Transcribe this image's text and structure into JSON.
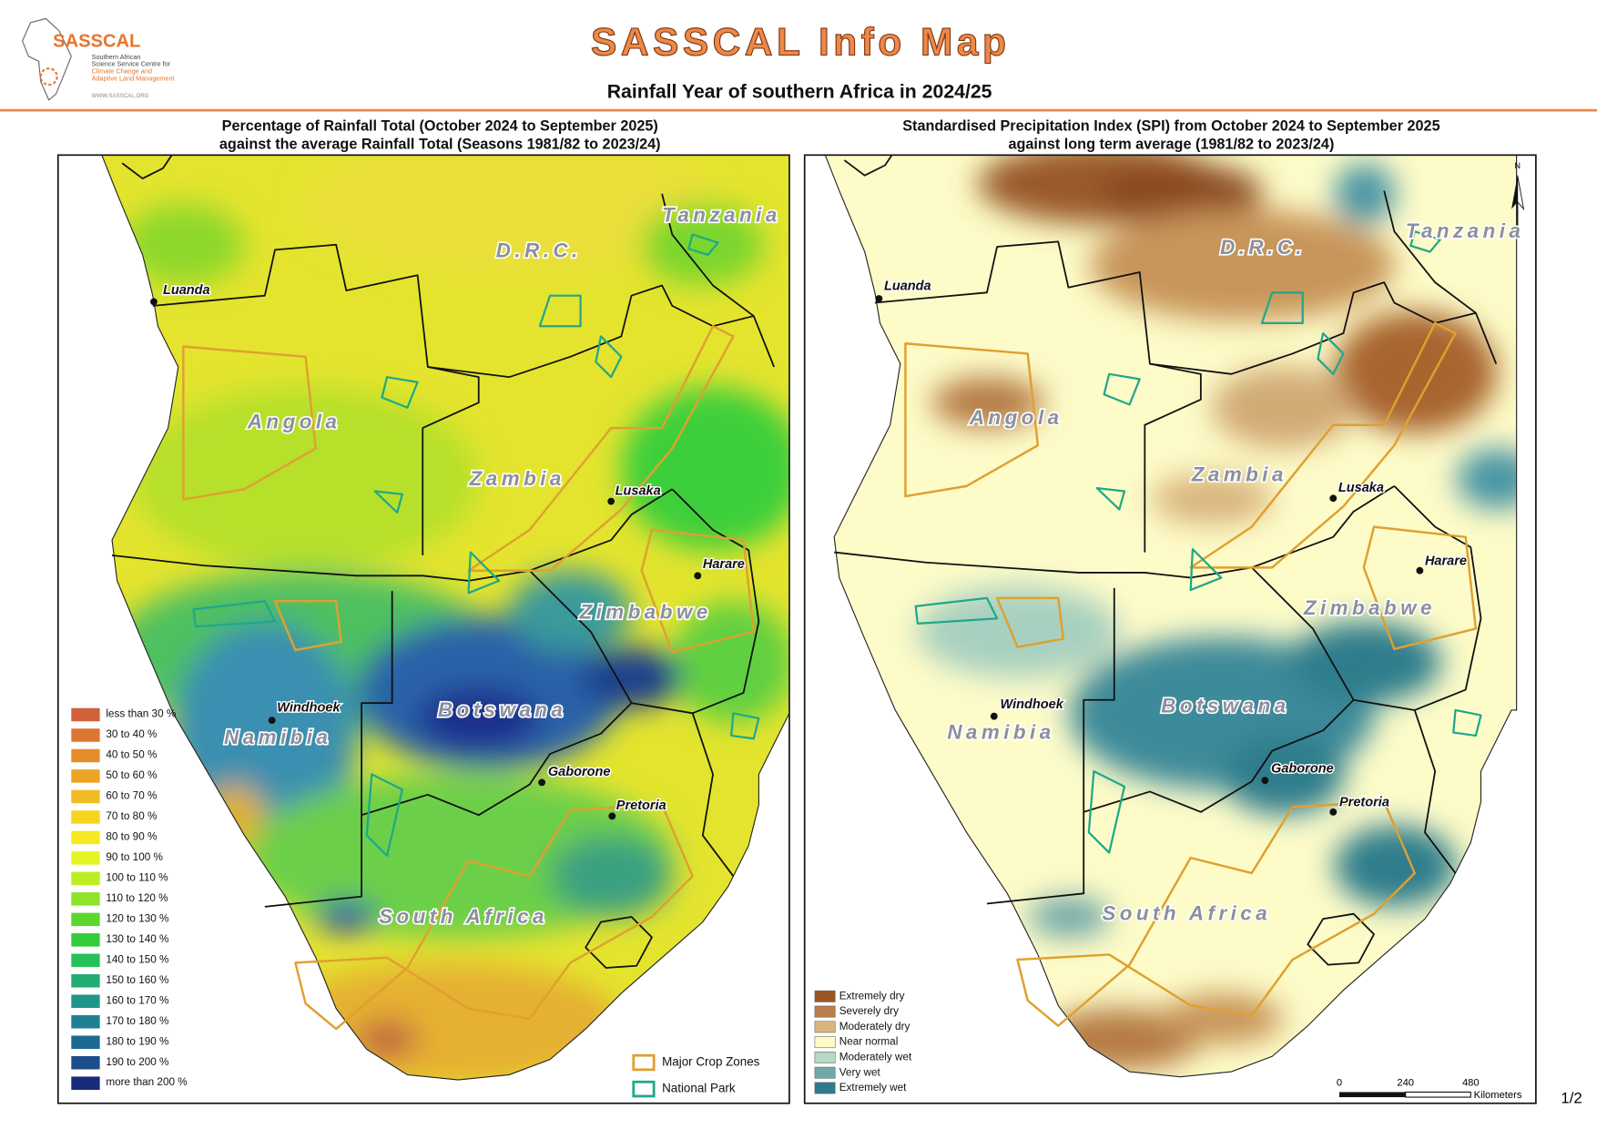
{
  "header": {
    "logo": {
      "name": "SASSCAL",
      "lines": [
        "Southern African",
        "Science Service Centre for",
        "Climate Change and",
        "Adaptive Land Management"
      ],
      "url": "WWW.SASSCAL.ORG"
    },
    "title": "SASSCAL Info Map",
    "subtitle": "Rainfall Year of southern Africa in 2024/25"
  },
  "maps": [
    {
      "title": [
        "Percentage of Rainfall Total (October 2024 to September 2025)",
        "against the average Rainfall Total (Seasons 1981/82 to 2023/24)"
      ],
      "countries": [
        "Tanzania",
        "D.R.C.",
        "Angola",
        "Zambia",
        "Zimbabwe",
        "Botswana",
        "Namibia",
        "South Africa"
      ],
      "cities": [
        "Luanda",
        "Lusaka",
        "Harare",
        "Windhoek",
        "Gaborone",
        "Pretoria"
      ],
      "legend": [
        {
          "label": "less than 30 %",
          "color": "#d2603a"
        },
        {
          "label": "30 to 40 %",
          "color": "#dc7632"
        },
        {
          "label": "40 to 50 %",
          "color": "#e58c2a"
        },
        {
          "label": "50 to 60 %",
          "color": "#eba424"
        },
        {
          "label": "60 to 70 %",
          "color": "#f0bc22"
        },
        {
          "label": "70 to 80 %",
          "color": "#f4d420"
        },
        {
          "label": "80 to 90 %",
          "color": "#f6e820"
        },
        {
          "label": "90 to 100 %",
          "color": "#e4f424"
        },
        {
          "label": "100 to 110 %",
          "color": "#bcee24"
        },
        {
          "label": "110 to 120 %",
          "color": "#8ee428"
        },
        {
          "label": "120 to 130 %",
          "color": "#5cd82c"
        },
        {
          "label": "130 to 140 %",
          "color": "#34cc38"
        },
        {
          "label": "140 to 150 %",
          "color": "#28c058"
        },
        {
          "label": "150 to 160 %",
          "color": "#22ac74"
        },
        {
          "label": "160 to 170 %",
          "color": "#20968a"
        },
        {
          "label": "170 to 180 %",
          "color": "#1f8094"
        },
        {
          "label": "180 to 190 %",
          "color": "#1e6894"
        },
        {
          "label": "190 to 200 %",
          "color": "#1c4e8c"
        },
        {
          "label": "more than 200 %",
          "color": "#182c7c"
        }
      ],
      "overlay_legend": [
        {
          "label": "Major Crop Zones",
          "color": "#e0a030"
        },
        {
          "label": "National Park",
          "color": "#1fa88a"
        }
      ]
    },
    {
      "title": [
        "Standardised Precipitation Index (SPI) from October 2024 to September 2025",
        "against long term average (1981/82 to 2023/24)"
      ],
      "countries": [
        "Tanzania",
        "D.R.C.",
        "Angola",
        "Zambia",
        "Zimbabwe",
        "Botswana",
        "Namibia",
        "South Africa"
      ],
      "cities": [
        "Luanda",
        "Lusaka",
        "Harare",
        "Windhoek",
        "Gaborone",
        "Pretoria"
      ],
      "legend": [
        {
          "label": "Extremely dry",
          "color": "#9a5524"
        },
        {
          "label": "Severely dry",
          "color": "#b97d4c"
        },
        {
          "label": "Moderately dry",
          "color": "#d9b57e"
        },
        {
          "label": "Near normal",
          "color": "#fdfbc8"
        },
        {
          "label": "Moderately wet",
          "color": "#b7d8c4"
        },
        {
          "label": "Very wet",
          "color": "#70a8a8"
        },
        {
          "label": "Extremely wet",
          "color": "#2e7a8c"
        }
      ],
      "north": "N",
      "scale_bar": {
        "ticks": [
          "0",
          "240",
          "480"
        ],
        "unit": "Kilometers"
      }
    }
  ],
  "page": "1/2"
}
